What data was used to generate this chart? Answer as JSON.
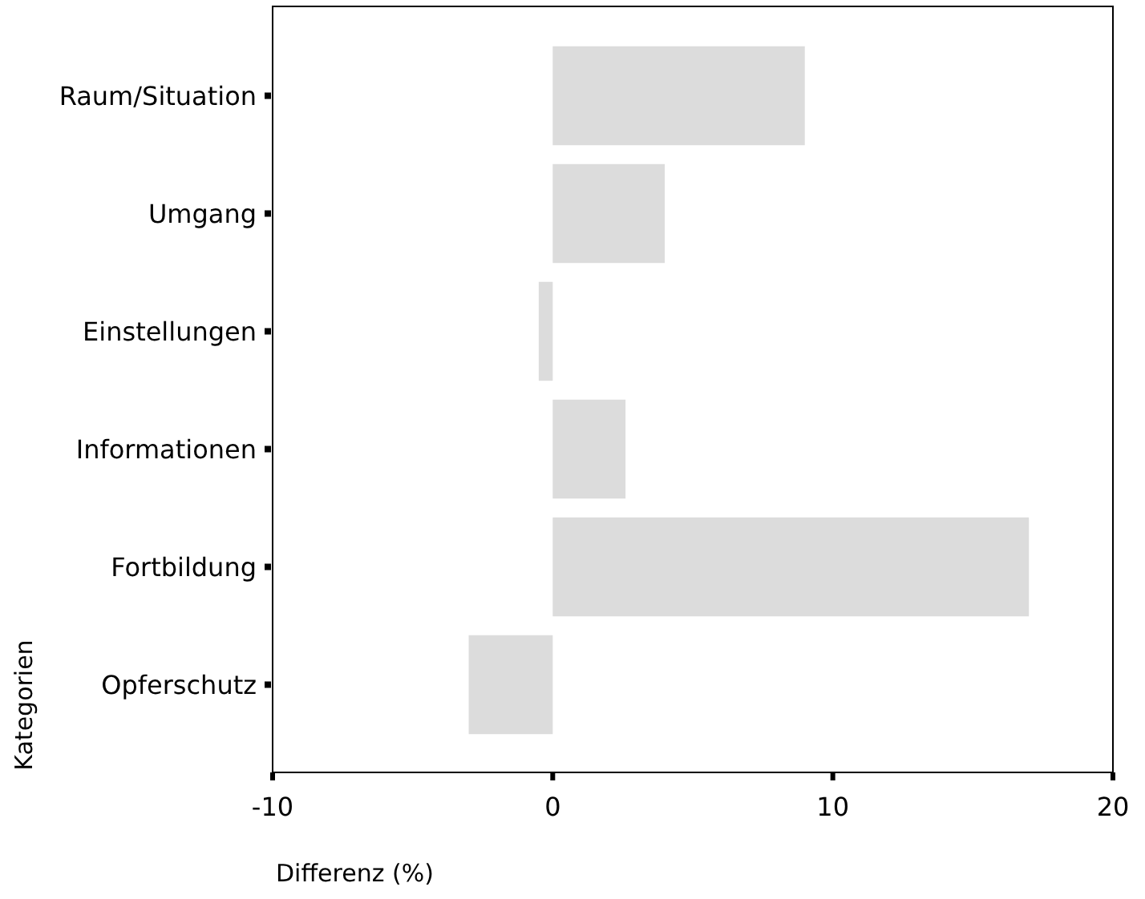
{
  "chart_data": {
    "type": "bar",
    "orientation": "horizontal",
    "categories": [
      "Raum/Situation",
      "Umgang",
      "Einstellungen",
      "Informationen",
      "Fortbildung",
      "Opferschutz"
    ],
    "values": [
      9,
      4,
      -0.5,
      2.6,
      17,
      -3
    ],
    "color": "#dcdcdc",
    "xlim": [
      -10,
      20
    ],
    "xticks": [
      -10,
      0,
      10,
      20
    ],
    "xlabel": "Differenz (%)",
    "ylabel": "Kategorien",
    "grid": false
  }
}
